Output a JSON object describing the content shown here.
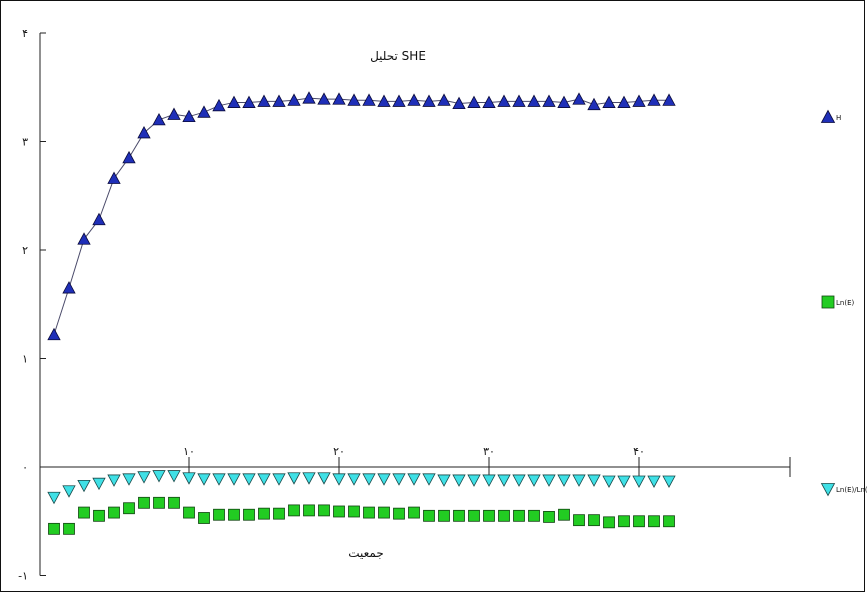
{
  "chart_data": {
    "type": "scatter",
    "title": "تحلیل SHE",
    "xlabel": "جمعیت",
    "ylabel": "",
    "xlim": [
      0,
      50
    ],
    "ylim": [
      -1,
      4
    ],
    "x_ticks": [
      {
        "value": 10,
        "label": "۱۰"
      },
      {
        "value": 20,
        "label": "۲۰"
      },
      {
        "value": 30,
        "label": "۳۰"
      },
      {
        "value": 40,
        "label": "۴۰"
      }
    ],
    "y_ticks": [
      {
        "value": -1,
        "label": "-۱"
      },
      {
        "value": 0,
        "label": "۰"
      },
      {
        "value": 1,
        "label": "۱"
      },
      {
        "value": 2,
        "label": "۲"
      },
      {
        "value": 3,
        "label": "۳"
      },
      {
        "value": 4,
        "label": "۴"
      }
    ],
    "grid": false,
    "legend_position": "right",
    "series": [
      {
        "name": "H",
        "marker": "triangle-up",
        "color": "#1f2fb8",
        "line": true,
        "x": [
          1,
          2,
          3,
          4,
          5,
          6,
          7,
          8,
          9,
          10,
          11,
          12,
          13,
          14,
          15,
          16,
          17,
          18,
          19,
          20,
          21,
          22,
          23,
          24,
          25,
          26,
          27,
          28,
          29,
          30,
          31,
          32,
          33,
          34,
          35,
          36,
          37,
          38,
          39,
          40,
          41,
          42
        ],
        "values": [
          1.22,
          1.65,
          2.1,
          2.28,
          2.66,
          2.85,
          3.08,
          3.2,
          3.25,
          3.23,
          3.27,
          3.33,
          3.36,
          3.36,
          3.37,
          3.37,
          3.38,
          3.4,
          3.39,
          3.39,
          3.38,
          3.38,
          3.37,
          3.37,
          3.38,
          3.37,
          3.38,
          3.35,
          3.36,
          3.36,
          3.37,
          3.37,
          3.37,
          3.37,
          3.36,
          3.39,
          3.34,
          3.36,
          3.36,
          3.37,
          3.38,
          3.38
        ]
      },
      {
        "name": "Ln(E)",
        "marker": "square",
        "color": "#22cc22",
        "line": false,
        "x": [
          1,
          2,
          3,
          4,
          5,
          6,
          7,
          8,
          9,
          10,
          11,
          12,
          13,
          14,
          15,
          16,
          17,
          18,
          19,
          20,
          21,
          22,
          23,
          24,
          25,
          26,
          27,
          28,
          29,
          30,
          31,
          32,
          33,
          34,
          35,
          36,
          37,
          38,
          39,
          40,
          41,
          42
        ],
        "values": [
          -0.57,
          -0.57,
          -0.42,
          -0.45,
          -0.42,
          -0.38,
          -0.33,
          -0.33,
          -0.33,
          -0.42,
          -0.47,
          -0.44,
          -0.44,
          -0.44,
          -0.43,
          -0.43,
          -0.4,
          -0.4,
          -0.4,
          -0.41,
          -0.41,
          -0.42,
          -0.42,
          -0.43,
          -0.42,
          -0.45,
          -0.45,
          -0.45,
          -0.45,
          -0.45,
          -0.45,
          -0.45,
          -0.45,
          -0.46,
          -0.44,
          -0.49,
          -0.49,
          -0.51,
          -0.5,
          -0.5,
          -0.5,
          -0.5
        ]
      },
      {
        "name": "Ln(E)/Ln(S)",
        "marker": "triangle-down",
        "color": "#3fe0e6",
        "line": false,
        "x": [
          1,
          2,
          3,
          4,
          5,
          6,
          7,
          8,
          9,
          10,
          11,
          12,
          13,
          14,
          15,
          16,
          17,
          18,
          19,
          20,
          21,
          22,
          23,
          24,
          25,
          26,
          27,
          28,
          29,
          30,
          31,
          32,
          33,
          34,
          35,
          36,
          37,
          38,
          39,
          40,
          41,
          42
        ],
        "values": [
          -0.28,
          -0.22,
          -0.17,
          -0.15,
          -0.12,
          -0.11,
          -0.09,
          -0.08,
          -0.08,
          -0.1,
          -0.11,
          -0.11,
          -0.11,
          -0.11,
          -0.11,
          -0.11,
          -0.1,
          -0.1,
          -0.1,
          -0.11,
          -0.11,
          -0.11,
          -0.11,
          -0.11,
          -0.11,
          -0.11,
          -0.12,
          -0.12,
          -0.12,
          -0.12,
          -0.12,
          -0.12,
          -0.12,
          -0.12,
          -0.12,
          -0.12,
          -0.12,
          -0.13,
          -0.13,
          -0.13,
          -0.13,
          -0.13
        ]
      }
    ]
  }
}
